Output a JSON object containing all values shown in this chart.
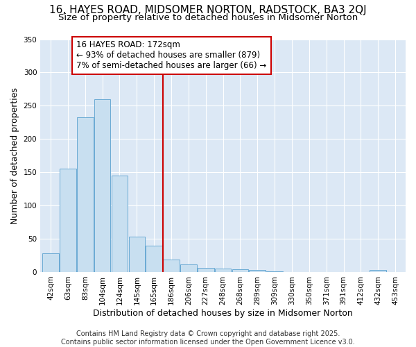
{
  "title": "16, HAYES ROAD, MIDSOMER NORTON, RADSTOCK, BA3 2QJ",
  "subtitle": "Size of property relative to detached houses in Midsomer Norton",
  "xlabel": "Distribution of detached houses by size in Midsomer Norton",
  "ylabel": "Number of detached properties",
  "categories": [
    "42sqm",
    "63sqm",
    "83sqm",
    "104sqm",
    "124sqm",
    "145sqm",
    "165sqm",
    "186sqm",
    "206sqm",
    "227sqm",
    "248sqm",
    "268sqm",
    "289sqm",
    "309sqm",
    "330sqm",
    "350sqm",
    "371sqm",
    "391sqm",
    "412sqm",
    "432sqm",
    "453sqm"
  ],
  "values": [
    28,
    155,
    233,
    260,
    145,
    53,
    40,
    19,
    11,
    6,
    5,
    4,
    3,
    1,
    0,
    0,
    0,
    0,
    0,
    3,
    0
  ],
  "bar_color": "#c8dff0",
  "bar_edge_color": "#6aaad4",
  "vline_x_index": 6.5,
  "vline_color": "#cc0000",
  "annotation_title": "16 HAYES ROAD: 172sqm",
  "annotation_line1": "← 93% of detached houses are smaller (879)",
  "annotation_line2": "7% of semi-detached houses are larger (66) →",
  "annotation_box_color": "#cc0000",
  "ylim": [
    0,
    350
  ],
  "yticks": [
    0,
    50,
    100,
    150,
    200,
    250,
    300,
    350
  ],
  "plot_bg_color": "#dce8f5",
  "fig_bg_color": "#ffffff",
  "grid_color": "#ffffff",
  "footer": "Contains HM Land Registry data © Crown copyright and database right 2025.\nContains public sector information licensed under the Open Government Licence v3.0.",
  "title_fontsize": 11,
  "subtitle_fontsize": 9.5,
  "axis_label_fontsize": 9,
  "tick_fontsize": 7.5,
  "footer_fontsize": 7,
  "annotation_fontsize": 8.5
}
